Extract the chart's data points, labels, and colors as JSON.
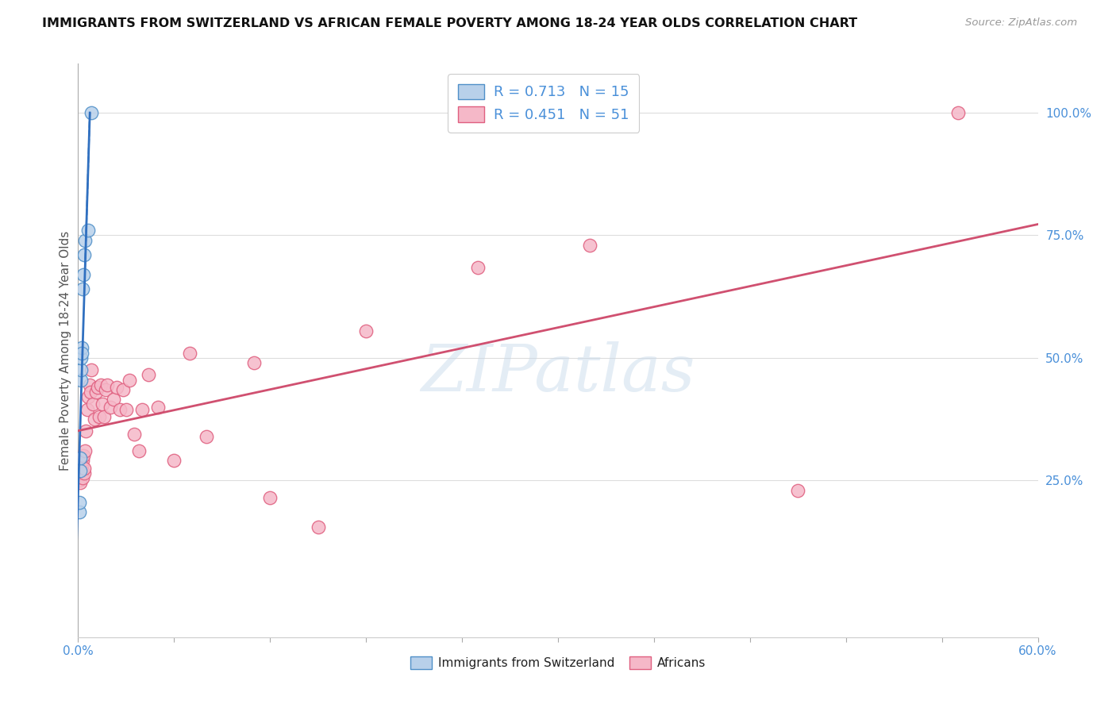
{
  "title": "IMMIGRANTS FROM SWITZERLAND VS AFRICAN FEMALE POVERTY AMONG 18-24 YEAR OLDS CORRELATION CHART",
  "source": "Source: ZipAtlas.com",
  "ylabel": "Female Poverty Among 18-24 Year Olds",
  "xlim": [
    0.0,
    0.6
  ],
  "ylim": [
    -0.07,
    1.1
  ],
  "xticks": [
    0.0,
    0.06,
    0.12,
    0.18,
    0.24,
    0.3,
    0.36,
    0.42,
    0.48,
    0.54,
    0.6
  ],
  "xticklabels": [
    "0.0%",
    "",
    "",
    "",
    "",
    "",
    "",
    "",
    "",
    "",
    "60.0%"
  ],
  "yticks_right": [
    0.25,
    0.5,
    0.75,
    1.0
  ],
  "ytick_right_labels": [
    "25.0%",
    "50.0%",
    "75.0%",
    "100.0%"
  ],
  "legend_label1": "Immigrants from Switzerland",
  "legend_label2": "Africans",
  "color_swiss_fill": "#b8d0ea",
  "color_swiss_edge": "#5090c8",
  "color_african_fill": "#f5b8c8",
  "color_african_edge": "#e06080",
  "color_swiss_trendline": "#3070c0",
  "color_african_trendline": "#d05070",
  "swiss_scatter_x": [
    0.0008,
    0.0009,
    0.0012,
    0.0014,
    0.0016,
    0.0018,
    0.002,
    0.0022,
    0.0025,
    0.003,
    0.0035,
    0.004,
    0.0045,
    0.006,
    0.008
  ],
  "swiss_scatter_y": [
    0.185,
    0.205,
    0.27,
    0.295,
    0.455,
    0.475,
    0.5,
    0.52,
    0.51,
    0.64,
    0.67,
    0.71,
    0.74,
    0.76,
    1.0
  ],
  "african_scatter_x": [
    0.0008,
    0.001,
    0.0015,
    0.002,
    0.0022,
    0.0025,
    0.0028,
    0.003,
    0.0033,
    0.0036,
    0.004,
    0.0045,
    0.005,
    0.0055,
    0.006,
    0.007,
    0.0075,
    0.008,
    0.009,
    0.01,
    0.011,
    0.012,
    0.013,
    0.014,
    0.015,
    0.016,
    0.017,
    0.018,
    0.02,
    0.022,
    0.024,
    0.026,
    0.028,
    0.03,
    0.032,
    0.035,
    0.038,
    0.04,
    0.044,
    0.05,
    0.06,
    0.07,
    0.08,
    0.11,
    0.12,
    0.15,
    0.18,
    0.25,
    0.32,
    0.45,
    0.55
  ],
  "african_scatter_y": [
    0.26,
    0.25,
    0.245,
    0.27,
    0.265,
    0.28,
    0.255,
    0.29,
    0.3,
    0.265,
    0.275,
    0.31,
    0.35,
    0.395,
    0.42,
    0.445,
    0.43,
    0.475,
    0.405,
    0.375,
    0.43,
    0.44,
    0.38,
    0.445,
    0.405,
    0.38,
    0.435,
    0.445,
    0.4,
    0.415,
    0.44,
    0.395,
    0.435,
    0.395,
    0.455,
    0.345,
    0.31,
    0.395,
    0.465,
    0.4,
    0.29,
    0.51,
    0.34,
    0.49,
    0.215,
    0.155,
    0.555,
    0.685,
    0.73,
    0.23,
    1.0
  ],
  "watermark_text": "ZIPatlas",
  "background_color": "#ffffff",
  "grid_color": "#dddddd"
}
